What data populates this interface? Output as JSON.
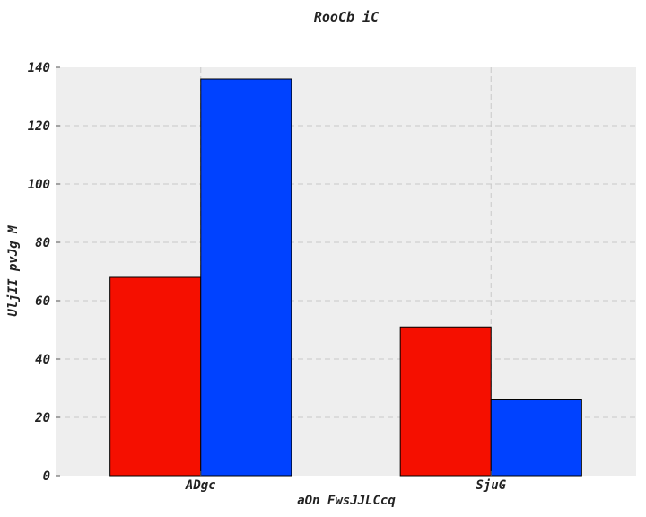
{
  "chart_data": {
    "type": "bar",
    "title": "RooCb iC",
    "xlabel": "aOn FwsJJLCcq",
    "ylabel": "UljII pvJg  M",
    "categories": [
      "ADgc",
      "SjuG"
    ],
    "series": [
      {
        "color": "#f50f00",
        "values": [
          68,
          51
        ]
      },
      {
        "color": "#0042ff",
        "values": [
          136,
          26
        ]
      }
    ],
    "ylim": [
      0,
      140
    ],
    "yticks": [
      0,
      20,
      40,
      60,
      80,
      100,
      120,
      140
    ],
    "grid": true,
    "background": "#eeeeee",
    "legend": "none"
  }
}
